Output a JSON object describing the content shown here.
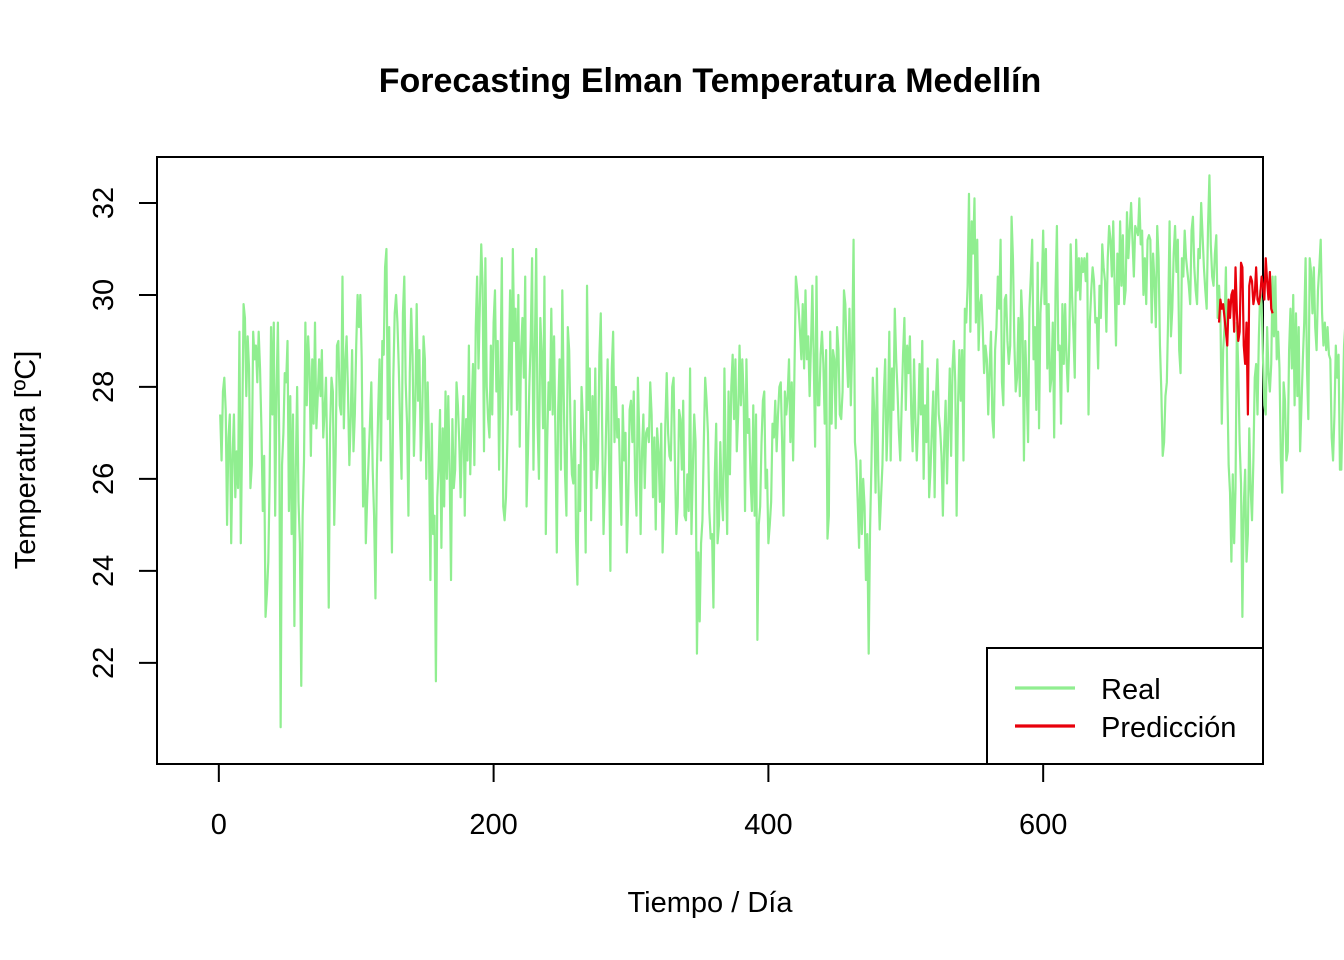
{
  "chart_data": {
    "type": "line",
    "title": "Forecasting Elman Temperatura Medellín",
    "xlabel": "Tiempo / Día",
    "ylabel": "Temperatura [ºC]",
    "xlim": [
      -45,
      760
    ],
    "ylim": [
      19.8,
      33.0
    ],
    "xticks": [
      0,
      200,
      400,
      600
    ],
    "yticks": [
      22,
      24,
      26,
      28,
      30,
      32
    ],
    "grid": false,
    "legend": "bottom-right",
    "series": [
      {
        "name": "Real",
        "color": "#90EE90",
        "x_start": 1,
        "values": [
          27.4,
          26.4,
          27.9,
          28.2,
          27.5,
          25.0,
          26.9,
          27.4,
          24.6,
          26.5,
          27.4,
          25.6,
          26.6,
          25.8,
          29.2,
          24.6,
          27.0,
          29.8,
          29.5,
          27.8,
          29.1,
          28.4,
          25.8,
          26.3,
          29.2,
          28.6,
          28.9,
          28.1,
          29.2,
          28.4,
          27.1,
          25.3,
          26.5,
          23.0,
          23.5,
          24.2,
          26.0,
          29.3,
          27.4,
          29.4,
          25.2,
          27.9,
          29.4,
          26.8,
          20.6,
          26.3,
          27.0,
          28.3,
          28.1,
          29.0,
          25.3,
          27.8,
          24.8,
          27.4,
          22.8,
          26.2,
          28.0,
          25.5,
          24.6,
          21.5,
          25.2,
          26.4,
          29.4,
          27.6,
          29.1,
          28.4,
          26.5,
          28.6,
          27.2,
          29.4,
          27.1,
          27.8,
          28.6,
          27.8,
          28.8,
          26.9,
          27.5,
          28.2,
          26.2,
          23.2,
          27.1,
          28.2,
          27.9,
          25.0,
          26.5,
          28.9,
          29.0,
          27.6,
          27.4,
          30.4,
          27.1,
          28.5,
          29.1,
          27.9,
          26.3,
          27.3,
          28.8,
          26.6,
          27.4,
          28.9,
          30.0,
          29.3,
          30.0,
          28.6,
          25.4,
          27.1,
          24.6,
          25.6,
          26.4,
          27.2,
          28.1,
          26.2,
          25.2,
          23.4,
          26.1,
          27.5,
          28.6,
          26.4,
          29.0,
          28.7,
          30.6,
          31.0,
          27.3,
          29.3,
          26.4,
          24.4,
          28.2,
          29.6,
          30.0,
          29.4,
          28.4,
          27.1,
          26.0,
          29.6,
          30.4,
          28.1,
          27.2,
          25.2,
          28.3,
          29.7,
          28.7,
          26.5,
          27.6,
          29.8,
          27.7,
          28.8,
          26.4,
          27.3,
          29.1,
          28.6,
          26.0,
          28.1,
          26.6,
          23.8,
          27.2,
          24.8,
          25.2,
          21.6,
          25.6,
          26.3,
          27.5,
          24.5,
          27.1,
          25.4,
          27.9,
          26.0,
          27.8,
          26.2,
          23.8,
          27.3,
          25.8,
          26.2,
          28.1,
          27.6,
          26.8,
          25.6,
          26.9,
          27.8,
          25.2,
          27.3,
          26.4,
          28.9,
          26.1,
          27.5,
          28.5,
          26.3,
          29.3,
          30.4,
          28.4,
          29.8,
          31.1,
          30.2,
          26.6,
          30.8,
          28.0,
          27.3,
          26.9,
          28.9,
          27.4,
          29.4,
          30.1,
          27.9,
          29.0,
          26.2,
          28.3,
          30.8,
          25.4,
          25.1,
          25.6,
          26.8,
          28.3,
          30.1,
          27.4,
          31.0,
          29.0,
          29.7,
          27.5,
          30.0,
          26.7,
          28.8,
          29.5,
          28.2,
          30.4,
          25.4,
          26.6,
          28.0,
          29.0,
          30.8,
          26.2,
          28.8,
          31.0,
          27.2,
          26.0,
          29.5,
          28.7,
          27.1,
          30.4,
          24.8,
          26.8,
          28.1,
          27.5,
          29.7,
          27.4,
          29.1,
          26.9,
          24.4,
          27.5,
          28.6,
          26.2,
          30.1,
          27.9,
          26.1,
          25.2,
          29.3,
          28.8,
          27.1,
          26.1,
          25.9,
          27.7,
          24.7,
          23.7,
          26.3,
          25.3,
          28.0,
          27.3,
          26.6,
          24.4,
          30.2,
          27.5,
          28.4,
          25.1,
          27.8,
          26.2,
          28.4,
          25.8,
          26.4,
          28.7,
          29.6,
          27.1,
          24.8,
          25.9,
          27.3,
          28.6,
          26.4,
          24.0,
          28.4,
          29.2,
          26.8,
          28.0,
          26.9,
          27.3,
          26.1,
          25.0,
          27.6,
          26.4,
          27.0,
          24.4,
          25.6,
          27.5,
          27.7,
          26.8,
          27.9,
          26.0,
          25.2,
          28.2,
          27.0,
          24.8,
          26.6,
          27.4,
          25.8,
          27.0,
          27.1,
          26.8,
          28.1,
          27.4,
          25.6,
          26.9,
          24.9,
          27.1,
          26.6,
          25.5,
          27.2,
          24.4,
          25.5,
          27.2,
          28.3,
          27.0,
          26.5,
          26.4,
          28.0,
          28.2,
          26.3,
          24.8,
          25.4,
          27.5,
          27.3,
          26.2,
          27.7,
          25.2,
          25.1,
          26.1,
          25.3,
          28.4,
          24.8,
          26.2,
          27.4,
          26.8,
          22.2,
          24.4,
          22.9,
          24.6,
          25.1,
          26.8,
          28.2,
          27.7,
          27.0,
          25.3,
          24.7,
          24.8,
          23.2,
          26.1,
          27.2,
          24.6,
          25.0,
          26.8,
          25.6,
          25.1,
          28.4,
          26.2,
          24.8,
          27.9,
          26.1,
          28.0,
          28.7,
          27.3,
          28.6,
          26.6,
          27.4,
          28.9,
          27.6,
          28.6,
          27.8,
          25.3,
          28.6,
          27.0,
          27.3,
          26.0,
          25.3,
          27.6,
          25.2,
          27.4,
          22.5,
          25.0,
          25.4,
          26.8,
          27.7,
          27.9,
          25.8,
          26.2,
          24.6,
          25.0,
          25.5,
          27.2,
          26.9,
          27.7,
          26.6,
          27.4,
          28.0,
          28.1,
          26.8,
          25.2,
          27.9,
          27.4,
          27.8,
          28.6,
          26.8,
          28.1,
          26.4,
          28.4,
          30.4,
          30.1,
          29.7,
          29.2,
          28.6,
          29.8,
          28.4,
          30.1,
          28.6,
          29.1,
          27.8,
          28.9,
          30.2,
          28.6,
          26.7,
          30.4,
          27.6,
          27.6,
          28.7,
          29.2,
          28.5,
          27.2,
          28.8,
          24.7,
          25.2,
          29.2,
          27.2,
          28.8,
          28.6,
          27.1,
          29.3,
          28.8,
          27.4,
          27.3,
          27.9,
          30.1,
          29.8,
          28.7,
          28.0,
          29.7,
          27.6,
          28.9,
          31.2,
          26.8,
          26.4,
          25.5,
          24.5,
          26.4,
          24.8,
          26.0,
          25.4,
          23.8,
          24.8,
          22.2,
          24.9,
          26.3,
          28.2,
          27.5,
          25.7,
          28.4,
          26.1,
          24.9,
          25.6,
          26.3,
          27.8,
          28.6,
          26.4,
          27.3,
          29.2,
          26.4,
          28.4,
          27.5,
          29.7,
          28.6,
          27.9,
          27.0,
          26.4,
          27.6,
          28.7,
          29.5,
          27.5,
          28.9,
          28.3,
          29.1,
          27.4,
          26.6,
          28.6,
          27.3,
          26.4,
          27.2,
          28.5,
          27.4,
          29.0,
          26.0,
          27.6,
          26.8,
          28.4,
          25.6,
          26.2,
          27.1,
          27.9,
          25.6,
          27.8,
          28.6,
          27.4,
          27.1,
          26.5,
          25.2,
          26.8,
          27.7,
          25.9,
          27.2,
          28.4,
          26.5,
          28.4,
          29.0,
          28.1,
          25.2,
          27.6,
          28.8,
          27.7,
          28.8,
          26.4,
          29.7,
          29.4,
          30.2,
          32.2,
          29.2,
          31.6,
          30.9,
          32.1,
          29.4,
          31.2,
          28.8,
          29.8,
          30.0,
          29.3,
          28.3,
          28.9,
          28.6,
          27.4,
          28.4,
          29.2,
          27.3,
          26.9,
          28.8,
          29.3,
          30.4,
          29.7,
          31.2,
          28.1,
          27.6,
          29.9,
          30.0,
          29.0,
          28.5,
          28.9,
          31.7,
          30.8,
          29.0,
          27.9,
          28.2,
          29.5,
          27.8,
          30.1,
          29.4,
          26.4,
          29.0,
          28.0,
          26.8,
          29.7,
          30.4,
          31.2,
          28.6,
          29.3,
          27.5,
          30.7,
          27.1,
          29.6,
          30.2,
          31.4,
          29.8,
          31.0,
          28.4,
          29.8,
          27.9,
          28.2,
          29.4,
          26.9,
          30.1,
          31.5,
          28.8,
          28.9,
          27.2,
          29.8,
          28.5,
          29.8,
          28.6,
          27.9,
          29.0,
          31.1,
          30.0,
          29.2,
          28.2,
          31.2,
          30.1,
          30.8,
          29.9,
          30.8,
          30.5,
          30.8,
          30.3,
          30.9,
          27.4,
          29.4,
          30.1,
          30.6,
          30.3,
          29.4,
          29.5,
          28.4,
          30.2,
          29.5,
          31.1,
          30.6,
          30.3,
          29.2,
          30.8,
          31.5,
          31.2,
          30.4,
          31.6,
          30.2,
          28.9,
          30.9,
          29.8,
          31.6,
          30.2,
          31.3,
          29.8,
          30.1,
          31.8,
          30.8,
          31.4,
          32.0,
          31.2,
          30.4,
          31.5,
          31.4,
          31.3,
          32.1,
          31.1,
          31.4,
          30.0,
          30.8,
          29.8,
          31.2,
          31.3,
          31.2,
          29.4,
          30.9,
          30.3,
          29.3,
          31.5,
          30.8,
          28.9,
          27.9,
          26.5,
          26.8,
          27.8,
          28.1,
          29.6,
          31.6,
          29.1,
          29.7,
          30.9,
          31.5,
          30.5,
          31.2,
          28.8,
          28.3,
          30.8,
          30.4,
          31.4,
          30.8,
          30.5,
          30.2,
          29.8,
          31.4,
          31.7,
          30.6,
          30.1,
          29.8,
          31.0,
          30.8,
          32.0,
          31.3,
          30.6,
          30.1,
          29.7,
          31.5,
          32.6,
          31.1,
          30.4,
          30.2,
          30.9,
          31.3,
          29.5,
          30.2,
          29.6,
          27.2,
          28.8,
          29.3,
          30.6,
          28.1,
          26.3,
          25.7,
          24.2,
          26.1,
          24.6,
          25.8,
          29.4,
          28.4,
          26.8,
          25.9,
          23.0,
          25.4,
          26.2,
          24.2,
          24.8,
          27.1,
          25.8,
          25.1,
          26.4,
          28.2,
          28.5,
          27.4,
          29.1,
          30.1,
          29.8,
          28.6,
          27.6,
          27.4,
          29.3,
          28.3,
          27.9,
          28.5,
          30.4,
          29.1,
          30.4,
          28.6,
          29.2,
          28.4,
          26.4,
          25.7,
          28.1,
          27.7,
          26.4,
          26.6,
          28.8,
          29.7,
          28.4,
          30.0,
          27.6,
          29.6,
          27.8,
          29.3,
          26.6,
          27.6,
          28.6,
          29.4,
          30.8,
          28.4,
          27.3,
          30.8,
          30.5,
          29.6,
          30.6,
          29.3,
          28.8,
          30.1,
          30.6,
          31.2,
          29.6,
          28.9,
          29.4,
          28.8,
          29.3,
          28.7,
          28.6,
          26.9,
          26.4,
          27.4,
          28.9,
          28.2,
          28.7,
          26.2,
          26.2,
          27.6,
          28.9,
          29.4,
          30.1,
          31.9,
          29.5,
          30.0
        ]
      },
      {
        "name": "Predicción",
        "color": "#E8000B",
        "x_start": 728,
        "values": [
          29.4,
          29.9,
          29.7,
          29.8,
          29.5,
          29.2,
          28.9,
          29.9,
          29.5,
          30.0,
          30.1,
          29.2,
          30.6,
          29.6,
          29.0,
          29.2,
          30.7,
          30.6,
          28.9,
          28.5,
          29.4,
          27.4,
          30.2,
          30.4,
          30.3,
          29.8,
          30.0,
          30.6,
          29.9,
          29.8,
          30.0,
          30.4,
          30.2,
          29.9,
          30.8,
          30.3,
          29.9,
          30.5,
          29.7,
          29.6
        ]
      }
    ]
  }
}
